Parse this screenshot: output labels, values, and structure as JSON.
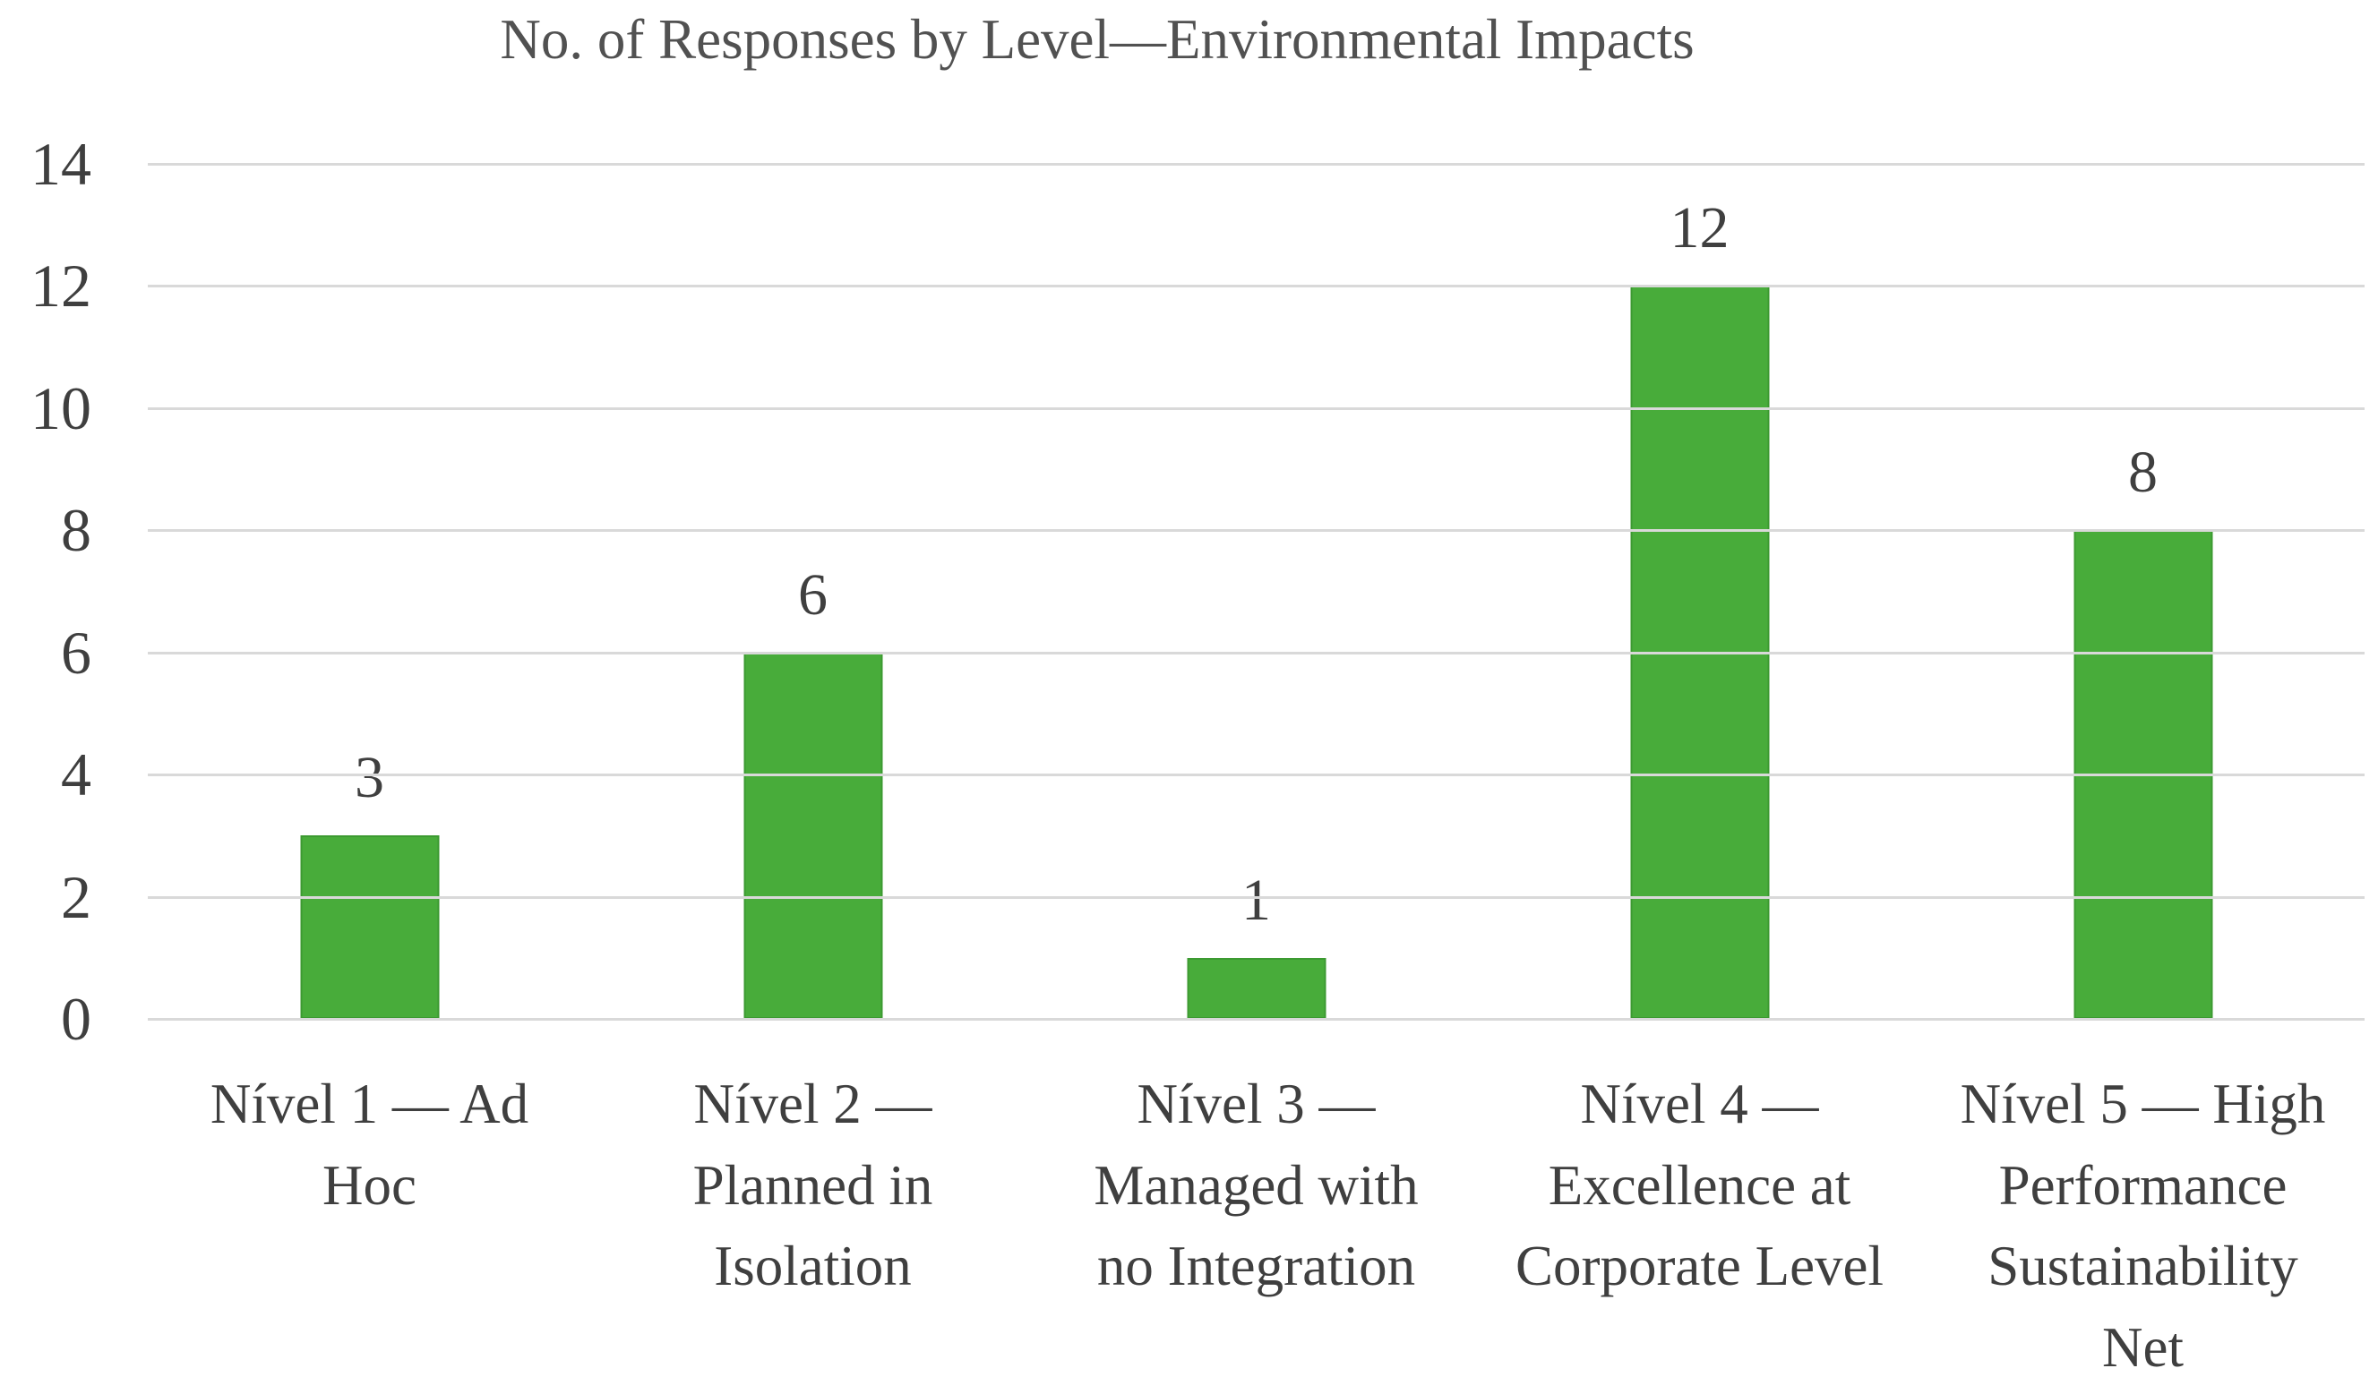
{
  "chart_data": {
    "type": "bar",
    "title": "No. of Responses by Level—Environmental Impacts",
    "categories": [
      "Nível 1 — Ad Hoc",
      "Nível 2 — Planned in Isolation",
      "Nível 3 — Managed with no Integration",
      "Nível 4 — Excellence at Corporate Level",
      "Nível 5 — High Performance Sustainability Net"
    ],
    "category_wrapped_lines": [
      [
        "Nível 1 — Ad",
        "Hoc"
      ],
      [
        "Nível 2 —",
        "Planned in",
        "Isolation"
      ],
      [
        "Nível 3 —",
        "Managed with",
        "no Integration"
      ],
      [
        "Nível 4 —",
        "Excellence at",
        "Corporate Level"
      ],
      [
        "Nível 5 — High",
        "Performance",
        "Sustainability",
        "Net"
      ]
    ],
    "values": [
      3,
      6,
      1,
      12,
      8
    ],
    "data_labels": [
      "3",
      "6",
      "1",
      "12",
      "8"
    ],
    "y_ticks": [
      0,
      2,
      4,
      6,
      8,
      10,
      12,
      14
    ],
    "ylim": [
      0,
      14
    ],
    "xlabel": "",
    "ylabel": "",
    "grid": "horizontal",
    "legend": "none",
    "colors": {
      "bar_fill": "#48AC3A",
      "bar_border": "#3C9A31",
      "gridline": "#D9D9D9",
      "axis_text": "#3F3F3F",
      "title_text": "#515151",
      "background": "#FFFFFF"
    }
  }
}
